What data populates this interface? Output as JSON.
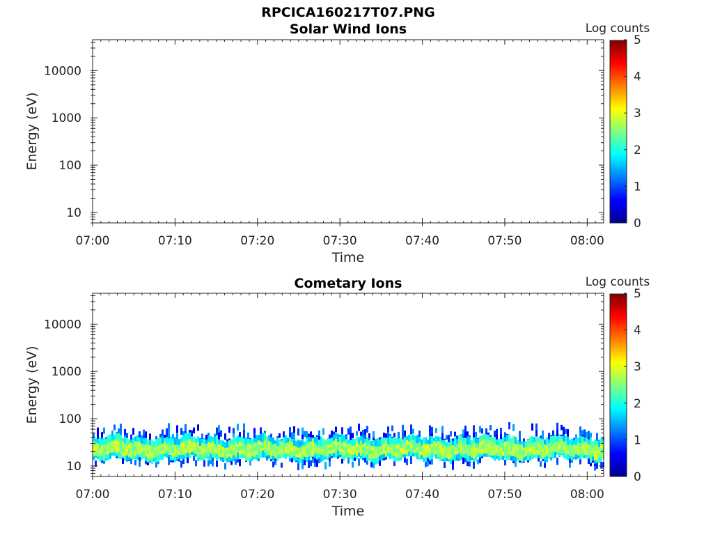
{
  "figure": {
    "title": "RPCICA160217T07.PNG"
  },
  "chart_data": [
    {
      "type": "heatmap",
      "title": "Solar Wind Ions",
      "xlabel": "Time",
      "ylabel": "Energy (eV)",
      "x_tick_labels": [
        "07:00",
        "07:10",
        "07:20",
        "07:30",
        "07:40",
        "07:50",
        "08:00"
      ],
      "x_range": [
        "07:00",
        "08:02"
      ],
      "y_scale": "log",
      "y_tick_values": [
        10,
        100,
        1000,
        10000
      ],
      "y_tick_labels": [
        "10",
        "100",
        "1000",
        "10000"
      ],
      "y_range": [
        6,
        45000
      ],
      "colorbar": {
        "label": "Log counts",
        "range": [
          0,
          5
        ],
        "tick_labels": [
          "0",
          "1",
          "2",
          "3",
          "4",
          "5"
        ],
        "colormap": "jet"
      },
      "data_bands": []
    },
    {
      "type": "heatmap",
      "title": "Cometary Ions",
      "xlabel": "Time",
      "ylabel": "Energy (eV)",
      "x_tick_labels": [
        "07:00",
        "07:10",
        "07:20",
        "07:30",
        "07:40",
        "07:50",
        "08:00"
      ],
      "x_range": [
        "07:00",
        "08:02"
      ],
      "y_scale": "log",
      "y_tick_values": [
        10,
        100,
        1000,
        10000
      ],
      "y_tick_labels": [
        "10",
        "100",
        "1000",
        "10000"
      ],
      "y_range": [
        6,
        45000
      ],
      "colorbar": {
        "label": "Log counts",
        "range": [
          0,
          5
        ],
        "tick_labels": [
          "0",
          "1",
          "2",
          "3",
          "4",
          "5"
        ],
        "colormap": "jet"
      },
      "data_bands": [
        {
          "energy_range_eV": [
            12,
            80
          ],
          "log_counts_range": [
            0.5,
            1.5
          ],
          "description": "sparse outer fringe"
        },
        {
          "energy_range_eV": [
            14,
            40
          ],
          "log_counts_range": [
            1.5,
            2.3
          ],
          "description": "continuous band edges"
        },
        {
          "energy_range_eV": [
            17,
            30
          ],
          "log_counts_range": [
            2.3,
            3.0
          ],
          "description": "band core"
        }
      ]
    }
  ]
}
